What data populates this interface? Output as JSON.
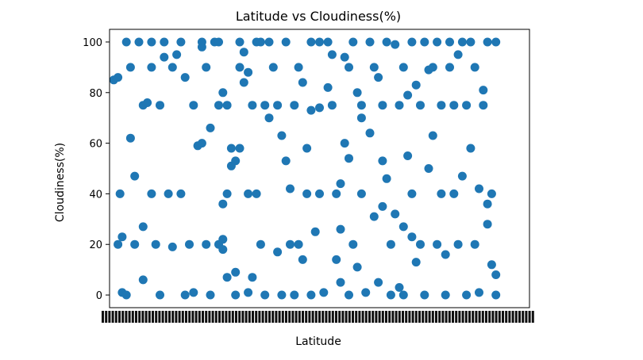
{
  "chart_data": {
    "type": "scatter",
    "title": "Latitude vs Cloudiness(%)",
    "xlabel": "Latitude",
    "ylabel": "Cloudiness(%)",
    "ylim": [
      -5,
      105
    ],
    "yticks": [
      0,
      20,
      40,
      60,
      80,
      100
    ],
    "xtick_labels_note": "x tick labels are overlapping and illegible",
    "grid": false,
    "marker_color": "#1f77b4",
    "series": [
      {
        "points": [
          [
            0.01,
            85
          ],
          [
            0.02,
            86
          ],
          [
            0.02,
            20
          ],
          [
            0.025,
            40
          ],
          [
            0.03,
            23
          ],
          [
            0.03,
            1
          ],
          [
            0.04,
            0
          ],
          [
            0.04,
            100
          ],
          [
            0.05,
            90
          ],
          [
            0.05,
            62
          ],
          [
            0.06,
            47
          ],
          [
            0.06,
            20
          ],
          [
            0.07,
            100
          ],
          [
            0.08,
            75
          ],
          [
            0.08,
            27
          ],
          [
            0.08,
            6
          ],
          [
            0.09,
            76
          ],
          [
            0.1,
            100
          ],
          [
            0.1,
            90
          ],
          [
            0.1,
            40
          ],
          [
            0.11,
            20
          ],
          [
            0.12,
            75
          ],
          [
            0.12,
            0
          ],
          [
            0.13,
            100
          ],
          [
            0.13,
            94
          ],
          [
            0.14,
            40
          ],
          [
            0.15,
            90
          ],
          [
            0.15,
            19
          ],
          [
            0.16,
            95
          ],
          [
            0.17,
            100
          ],
          [
            0.17,
            40
          ],
          [
            0.18,
            86
          ],
          [
            0.18,
            0
          ],
          [
            0.19,
            20
          ],
          [
            0.2,
            75
          ],
          [
            0.2,
            1
          ],
          [
            0.21,
            59
          ],
          [
            0.22,
            100
          ],
          [
            0.22,
            98
          ],
          [
            0.22,
            60
          ],
          [
            0.23,
            90
          ],
          [
            0.23,
            20
          ],
          [
            0.24,
            66
          ],
          [
            0.24,
            0
          ],
          [
            0.25,
            100
          ],
          [
            0.26,
            100
          ],
          [
            0.26,
            75
          ],
          [
            0.26,
            20
          ],
          [
            0.27,
            80
          ],
          [
            0.27,
            22
          ],
          [
            0.27,
            18
          ],
          [
            0.27,
            36
          ],
          [
            0.28,
            75
          ],
          [
            0.28,
            7
          ],
          [
            0.28,
            40
          ],
          [
            0.29,
            58
          ],
          [
            0.29,
            51
          ],
          [
            0.3,
            53
          ],
          [
            0.3,
            9
          ],
          [
            0.3,
            0
          ],
          [
            0.31,
            100
          ],
          [
            0.31,
            90
          ],
          [
            0.31,
            58
          ],
          [
            0.32,
            96
          ],
          [
            0.32,
            84
          ],
          [
            0.33,
            88
          ],
          [
            0.33,
            40
          ],
          [
            0.33,
            1
          ],
          [
            0.34,
            75
          ],
          [
            0.34,
            7
          ],
          [
            0.35,
            100
          ],
          [
            0.35,
            40
          ],
          [
            0.36,
            100
          ],
          [
            0.36,
            20
          ],
          [
            0.37,
            75
          ],
          [
            0.37,
            0
          ],
          [
            0.38,
            70
          ],
          [
            0.38,
            100
          ],
          [
            0.39,
            90
          ],
          [
            0.4,
            75
          ],
          [
            0.4,
            17
          ],
          [
            0.41,
            63
          ],
          [
            0.41,
            0
          ],
          [
            0.42,
            100
          ],
          [
            0.42,
            53
          ],
          [
            0.43,
            42
          ],
          [
            0.43,
            20
          ],
          [
            0.44,
            75
          ],
          [
            0.44,
            0
          ],
          [
            0.45,
            90
          ],
          [
            0.45,
            20
          ],
          [
            0.46,
            14
          ],
          [
            0.46,
            84
          ],
          [
            0.47,
            58
          ],
          [
            0.47,
            40
          ],
          [
            0.48,
            100
          ],
          [
            0.48,
            73
          ],
          [
            0.48,
            0
          ],
          [
            0.49,
            25
          ],
          [
            0.5,
            100
          ],
          [
            0.5,
            74
          ],
          [
            0.5,
            40
          ],
          [
            0.51,
            1
          ],
          [
            0.52,
            100
          ],
          [
            0.52,
            82
          ],
          [
            0.53,
            95
          ],
          [
            0.53,
            75
          ],
          [
            0.54,
            40
          ],
          [
            0.54,
            14
          ],
          [
            0.55,
            44
          ],
          [
            0.55,
            26
          ],
          [
            0.55,
            5
          ],
          [
            0.56,
            94
          ],
          [
            0.56,
            60
          ],
          [
            0.57,
            90
          ],
          [
            0.57,
            54
          ],
          [
            0.57,
            0
          ],
          [
            0.58,
            100
          ],
          [
            0.58,
            20
          ],
          [
            0.59,
            80
          ],
          [
            0.59,
            11
          ],
          [
            0.6,
            75
          ],
          [
            0.6,
            70
          ],
          [
            0.6,
            40
          ],
          [
            0.61,
            1
          ],
          [
            0.62,
            100
          ],
          [
            0.62,
            64
          ],
          [
            0.63,
            90
          ],
          [
            0.63,
            31
          ],
          [
            0.64,
            86
          ],
          [
            0.64,
            5
          ],
          [
            0.65,
            75
          ],
          [
            0.65,
            53
          ],
          [
            0.65,
            35
          ],
          [
            0.66,
            46
          ],
          [
            0.66,
            100
          ],
          [
            0.67,
            20
          ],
          [
            0.67,
            0
          ],
          [
            0.68,
            99
          ],
          [
            0.68,
            32
          ],
          [
            0.69,
            75
          ],
          [
            0.69,
            3
          ],
          [
            0.7,
            90
          ],
          [
            0.7,
            27
          ],
          [
            0.7,
            0
          ],
          [
            0.71,
            55
          ],
          [
            0.71,
            79
          ],
          [
            0.72,
            100
          ],
          [
            0.72,
            40
          ],
          [
            0.72,
            23
          ],
          [
            0.73,
            83
          ],
          [
            0.73,
            13
          ],
          [
            0.74,
            75
          ],
          [
            0.74,
            20
          ],
          [
            0.75,
            100
          ],
          [
            0.75,
            0
          ],
          [
            0.76,
            50
          ],
          [
            0.76,
            89
          ],
          [
            0.77,
            90
          ],
          [
            0.77,
            63
          ],
          [
            0.78,
            100
          ],
          [
            0.78,
            20
          ],
          [
            0.79,
            75
          ],
          [
            0.79,
            40
          ],
          [
            0.8,
            16
          ],
          [
            0.8,
            0
          ],
          [
            0.81,
            100
          ],
          [
            0.81,
            90
          ],
          [
            0.82,
            75
          ],
          [
            0.82,
            40
          ],
          [
            0.83,
            95
          ],
          [
            0.83,
            20
          ],
          [
            0.84,
            100
          ],
          [
            0.84,
            47
          ],
          [
            0.85,
            75
          ],
          [
            0.85,
            0
          ],
          [
            0.86,
            100
          ],
          [
            0.86,
            58
          ],
          [
            0.87,
            90
          ],
          [
            0.87,
            20
          ],
          [
            0.88,
            42
          ],
          [
            0.88,
            1
          ],
          [
            0.89,
            81
          ],
          [
            0.89,
            75
          ],
          [
            0.9,
            100
          ],
          [
            0.9,
            28
          ],
          [
            0.9,
            36
          ],
          [
            0.91,
            40
          ],
          [
            0.91,
            12
          ],
          [
            0.92,
            100
          ],
          [
            0.92,
            8
          ],
          [
            0.92,
            0
          ]
        ]
      }
    ]
  }
}
